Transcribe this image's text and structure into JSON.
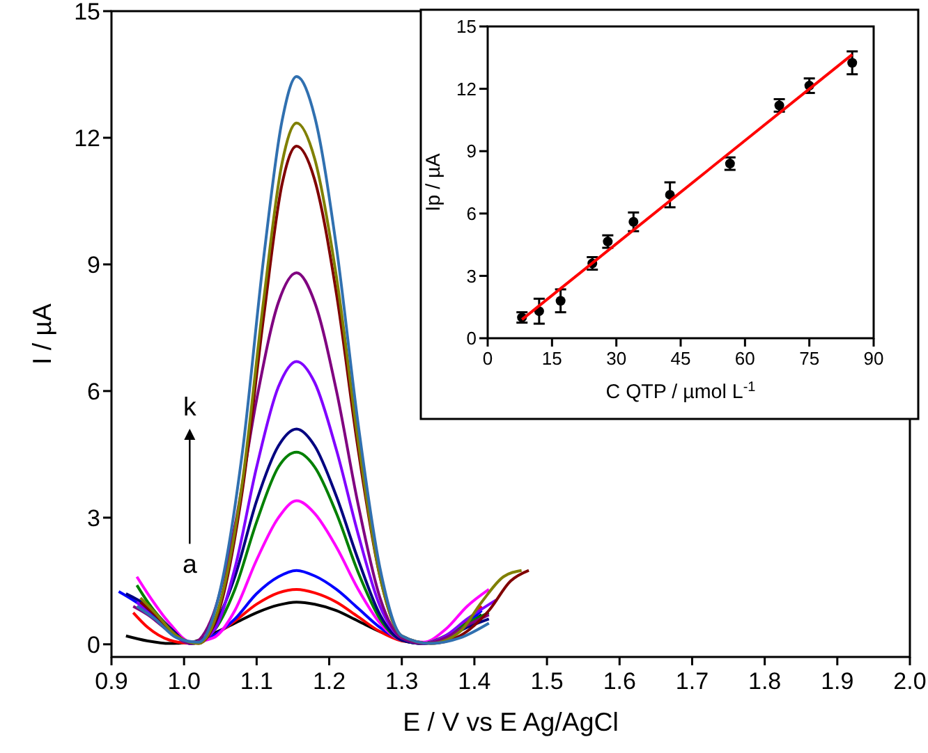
{
  "chart_data": [
    {
      "type": "line",
      "xlabel": "E / V vs E Ag/AgCl",
      "ylabel": "I / µA",
      "xlim": [
        0.9,
        2.0
      ],
      "ylim": [
        -0.3,
        15
      ],
      "xticks": [
        {
          "value": 0.9,
          "label": "0.9"
        },
        {
          "value": 1.0,
          "label": "1.0"
        },
        1.1,
        1.2,
        1.3,
        1.4,
        1.5,
        1.6,
        1.7,
        1.8,
        1.9,
        {
          "value": 2.0,
          "label": "2.0"
        }
      ],
      "yticks": [
        0,
        3,
        6,
        9,
        12,
        15
      ],
      "grid": false,
      "line_style": "solid",
      "annotations": [
        "a",
        "k"
      ],
      "series": [
        {
          "color": "#000000",
          "x": [
            0.92,
            0.95,
            0.98,
            1.01,
            1.04,
            1.07,
            1.1,
            1.13,
            1.155,
            1.18,
            1.21,
            1.24,
            1.27,
            1.3,
            1.33,
            1.36,
            1.39,
            1.41
          ],
          "values": [
            0.2,
            0.08,
            0.02,
            0.05,
            0.25,
            0.5,
            0.75,
            0.93,
            1.0,
            0.95,
            0.8,
            0.55,
            0.3,
            0.1,
            0.02,
            0.15,
            0.45,
            0.7
          ]
        },
        {
          "color": "#ff0000",
          "x": [
            0.93,
            0.95,
            0.98,
            1.01,
            1.04,
            1.07,
            1.1,
            1.13,
            1.155,
            1.18,
            1.21,
            1.24,
            1.27,
            1.3,
            1.33,
            1.36,
            1.39,
            1.41
          ],
          "values": [
            0.75,
            0.4,
            0.1,
            0.02,
            0.2,
            0.55,
            0.95,
            1.22,
            1.3,
            1.22,
            1.0,
            0.65,
            0.3,
            0.08,
            0.03,
            0.2,
            0.55,
            0.9
          ]
        },
        {
          "color": "#0000ff",
          "x": [
            0.91,
            0.95,
            0.98,
            1.01,
            1.04,
            1.07,
            1.1,
            1.13,
            1.155,
            1.18,
            1.21,
            1.24,
            1.27,
            1.3,
            1.33,
            1.36,
            1.39,
            1.41
          ],
          "values": [
            1.25,
            0.8,
            0.3,
            0.02,
            0.2,
            0.6,
            1.2,
            1.6,
            1.75,
            1.62,
            1.3,
            0.85,
            0.4,
            0.1,
            0.02,
            0.15,
            0.5,
            0.8
          ]
        },
        {
          "color": "#ff00ff",
          "x": [
            0.935,
            0.95,
            0.98,
            1.01,
            1.04,
            1.07,
            1.1,
            1.13,
            1.155,
            1.18,
            1.21,
            1.24,
            1.27,
            1.3,
            1.33,
            1.36,
            1.39,
            1.42
          ],
          "values": [
            1.6,
            1.2,
            0.5,
            0.05,
            0.15,
            0.8,
            2.0,
            3.0,
            3.4,
            3.1,
            2.3,
            1.3,
            0.5,
            0.1,
            0.05,
            0.35,
            0.9,
            1.3
          ]
        },
        {
          "color": "#008000",
          "x": [
            0.935,
            0.95,
            0.98,
            1.01,
            1.04,
            1.07,
            1.1,
            1.13,
            1.155,
            1.18,
            1.21,
            1.24,
            1.27,
            1.3,
            1.33,
            1.36,
            1.39,
            1.42
          ],
          "values": [
            1.4,
            1.0,
            0.4,
            0.02,
            0.3,
            1.3,
            2.9,
            4.2,
            4.55,
            4.2,
            3.1,
            1.7,
            0.6,
            0.1,
            0.02,
            0.2,
            0.5,
            0.75
          ]
        },
        {
          "color": "#000080",
          "x": [
            0.92,
            0.95,
            0.98,
            1.01,
            1.04,
            1.07,
            1.1,
            1.13,
            1.155,
            1.18,
            1.21,
            1.24,
            1.27,
            1.3,
            1.33,
            1.36,
            1.39,
            1.42
          ],
          "values": [
            1.2,
            0.9,
            0.4,
            0.02,
            0.4,
            1.6,
            3.4,
            4.7,
            5.1,
            4.7,
            3.5,
            2.0,
            0.7,
            0.1,
            0.02,
            0.15,
            0.4,
            0.6
          ]
        },
        {
          "color": "#8000ff",
          "x": [
            0.935,
            0.95,
            0.98,
            1.01,
            1.04,
            1.07,
            1.1,
            1.13,
            1.155,
            1.18,
            1.21,
            1.24,
            1.27,
            1.3,
            1.33,
            1.36,
            1.39,
            1.43
          ],
          "values": [
            1.0,
            0.75,
            0.3,
            0.02,
            0.3,
            1.8,
            4.2,
            6.1,
            6.7,
            6.2,
            4.6,
            2.6,
            0.9,
            0.15,
            0.02,
            0.2,
            0.6,
            1.05
          ]
        },
        {
          "color": "#800080",
          "x": [
            0.93,
            0.95,
            0.98,
            1.01,
            1.04,
            1.07,
            1.1,
            1.13,
            1.155,
            1.18,
            1.21,
            1.24,
            1.27,
            1.3,
            1.33,
            1.36,
            1.39,
            1.42
          ],
          "values": [
            0.9,
            0.7,
            0.3,
            0.02,
            0.7,
            2.8,
            5.8,
            8.1,
            8.8,
            8.1,
            6.0,
            3.3,
            1.1,
            0.15,
            0.02,
            0.15,
            0.45,
            0.7
          ]
        },
        {
          "color": "#800000",
          "x": [
            0.94,
            0.96,
            0.99,
            1.02,
            1.05,
            1.08,
            1.11,
            1.135,
            1.155,
            1.18,
            1.21,
            1.24,
            1.27,
            1.3,
            1.34,
            1.38,
            1.42,
            1.45,
            1.475
          ],
          "values": [
            1.0,
            0.7,
            0.2,
            0.02,
            0.9,
            3.6,
            7.8,
            10.9,
            11.8,
            11.0,
            8.3,
            4.6,
            1.6,
            0.2,
            0.02,
            0.2,
            0.8,
            1.5,
            1.75
          ]
        },
        {
          "color": "#808000",
          "x": [
            0.94,
            0.96,
            0.99,
            1.02,
            1.05,
            1.08,
            1.11,
            1.135,
            1.155,
            1.18,
            1.21,
            1.24,
            1.27,
            1.3,
            1.34,
            1.38,
            1.41,
            1.44,
            1.465
          ],
          "values": [
            1.1,
            0.75,
            0.2,
            0.02,
            1.0,
            3.8,
            8.2,
            11.4,
            12.35,
            11.5,
            8.7,
            4.8,
            1.6,
            0.2,
            0.02,
            0.3,
            1.0,
            1.6,
            1.75
          ]
        },
        {
          "color": "#3070b0",
          "x": [
            0.935,
            0.96,
            0.99,
            1.02,
            1.05,
            1.08,
            1.11,
            1.135,
            1.155,
            1.18,
            1.21,
            1.24,
            1.27,
            1.3,
            1.34,
            1.38,
            1.42
          ],
          "values": [
            0.9,
            0.6,
            0.15,
            0.05,
            1.3,
            4.5,
            9.2,
            12.4,
            13.45,
            12.5,
            9.4,
            5.2,
            1.8,
            0.2,
            0.02,
            0.15,
            0.5
          ]
        }
      ]
    },
    {
      "type": "scatter",
      "xlabel": "C QTP / µmol L$^{-1}$",
      "ylabel": "Ip / µA",
      "xlim": [
        0,
        90
      ],
      "ylim": [
        0,
        15
      ],
      "xticks": [
        0,
        15,
        30,
        45,
        60,
        75,
        90
      ],
      "yticks": [
        0,
        3,
        6,
        9,
        12,
        15
      ],
      "grid": false,
      "series": [
        {
          "marker": "circle",
          "color": "#000000",
          "x": [
            8,
            12,
            17,
            24.4,
            28,
            34,
            42.5,
            56.5,
            68,
            75,
            85
          ],
          "values": [
            1.0,
            1.3,
            1.8,
            3.6,
            4.65,
            5.6,
            6.9,
            8.4,
            11.2,
            12.15,
            13.25
          ],
          "errors": [
            0.25,
            0.6,
            0.55,
            0.3,
            0.3,
            0.45,
            0.6,
            0.3,
            0.3,
            0.35,
            0.55
          ]
        },
        {
          "type": "line",
          "color": "#ff0000",
          "x": [
            8,
            85
          ],
          "values": [
            0.9,
            13.65
          ]
        }
      ]
    }
  ]
}
